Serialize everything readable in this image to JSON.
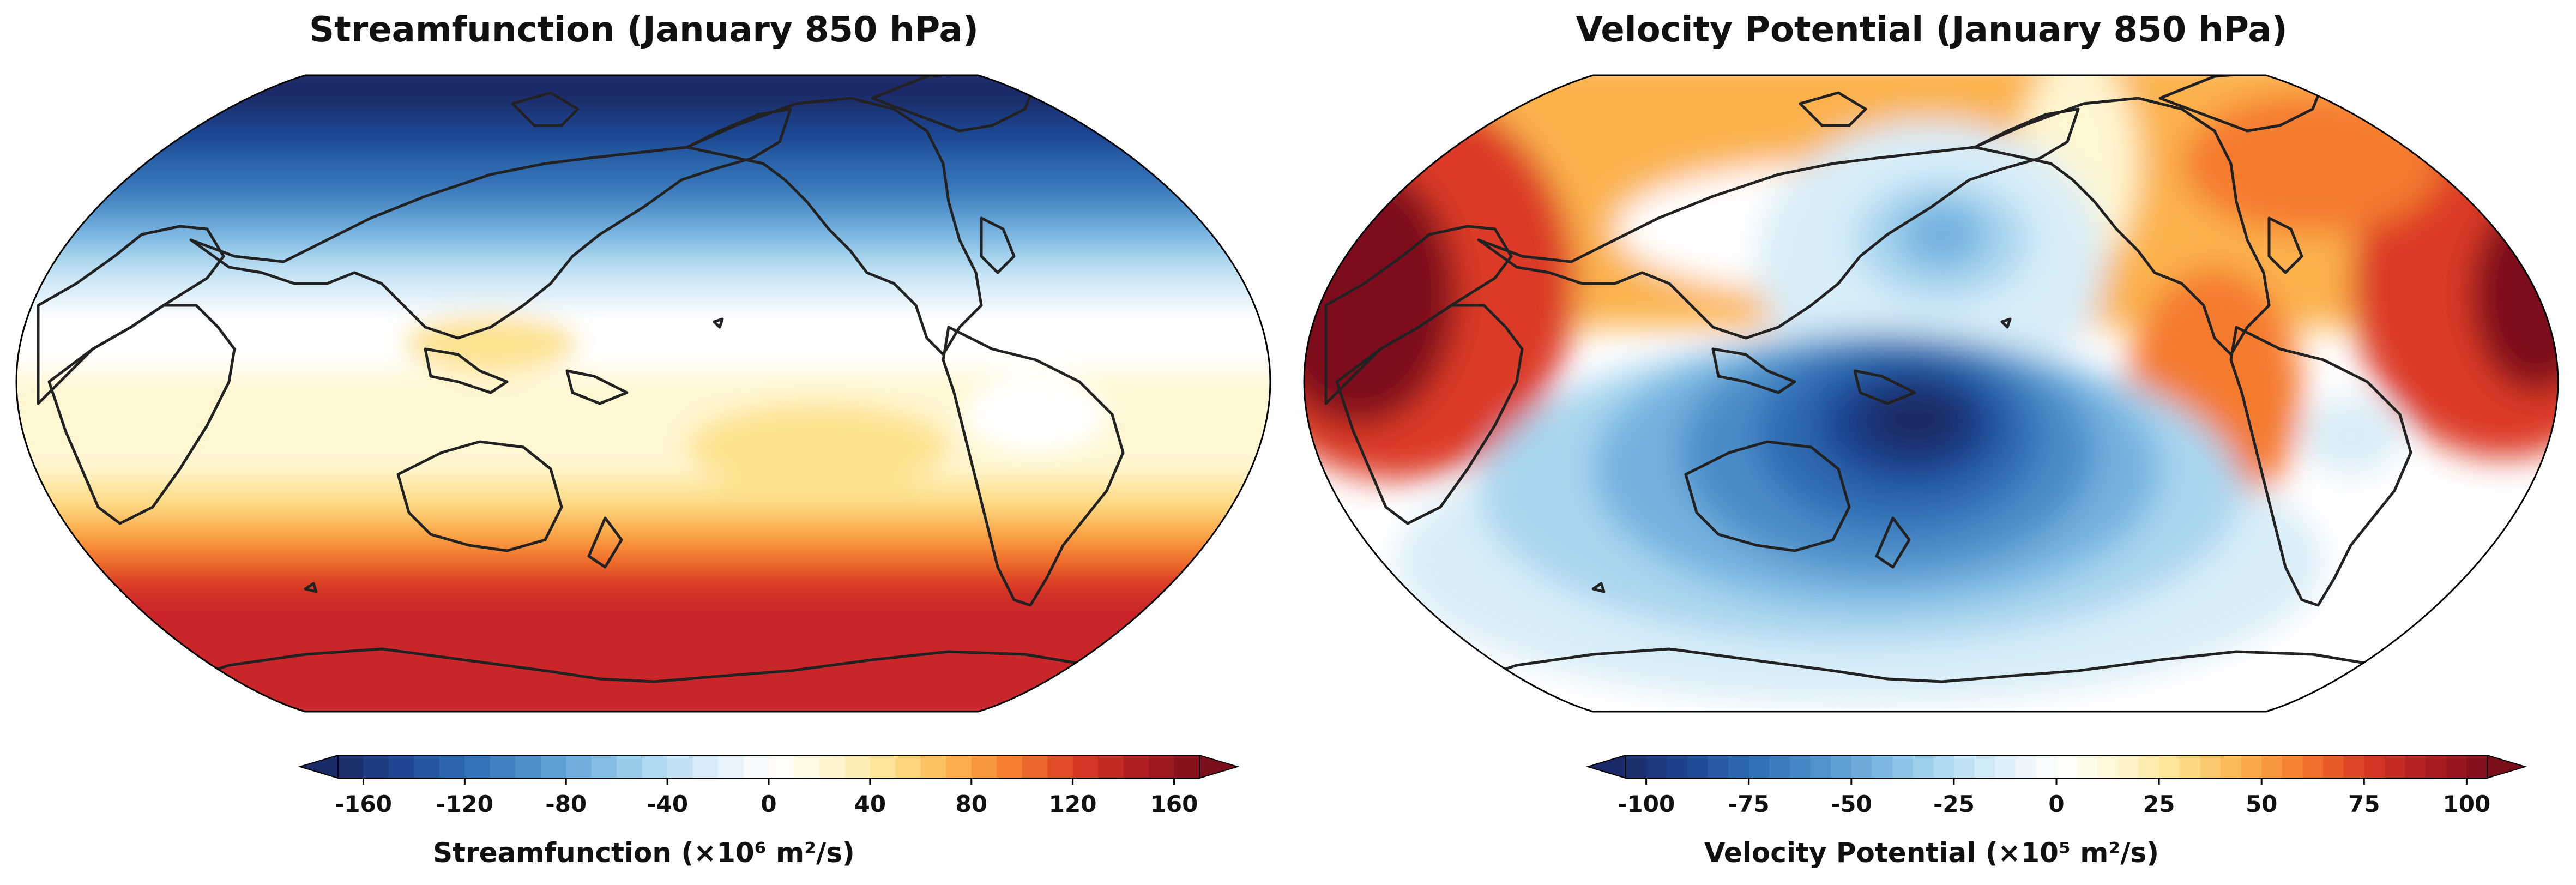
{
  "panels": [
    {
      "title": "Streamfunction (January 850 hPa)",
      "colorbar": {
        "label": "Streamfunction (×10⁶ m²/s)",
        "min": -170,
        "max": 170,
        "step": 10,
        "extend": "both",
        "ticks": [
          "-160",
          "-120",
          "-80",
          "-40",
          "0",
          "40",
          "80",
          "120",
          "160"
        ],
        "tick_values": [
          -160,
          -120,
          -80,
          -40,
          0,
          40,
          80,
          120,
          160
        ]
      }
    },
    {
      "title": "Velocity Potential (January 850 hPa)",
      "colorbar": {
        "label": "Velocity Potential (×10⁵ m²/s)",
        "min": -105,
        "max": 105,
        "step": 5,
        "extend": "both",
        "ticks": [
          "-100",
          "-75",
          "-50",
          "-25",
          "0",
          "25",
          "50",
          "75",
          "100"
        ],
        "tick_values": [
          -100,
          -75,
          -50,
          -25,
          0,
          25,
          50,
          75,
          100
        ]
      }
    }
  ],
  "colors": {
    "ramp": [
      "#1b2a68",
      "#1f4590",
      "#2e6bb0",
      "#4a8cc8",
      "#73b1de",
      "#a7d5ef",
      "#d8edf8",
      "#ffffff",
      "#fff7d2",
      "#fde18e",
      "#fbb24d",
      "#f47a2e",
      "#db3a26",
      "#b01d21",
      "#7d0f1d"
    ],
    "coast": "#222222"
  }
}
